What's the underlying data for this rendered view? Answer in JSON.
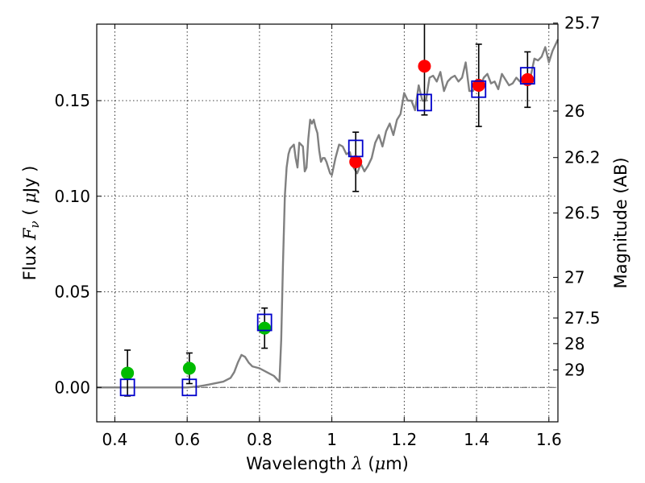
{
  "chart_data": {
    "type": "scatter",
    "xlabel": "Wavelength  λ (μm)",
    "xlabel_parts": [
      "Wavelength  ",
      "λ",
      " (",
      "μ",
      "m)"
    ],
    "ylabel": "Flux  Fν  ( μJy )",
    "ylabel_parts": [
      "Flux  ",
      "F",
      "ν",
      "  ( ",
      "μ",
      "Jy )"
    ],
    "y2label": "Magnitude (AB)",
    "xlim": [
      0.35,
      1.625
    ],
    "ylim": [
      -0.018,
      0.19
    ],
    "grid": true,
    "x_ticks": [
      {
        "value": 0.4,
        "label": "0.4"
      },
      {
        "value": 0.6,
        "label": "0.6"
      },
      {
        "value": 0.8,
        "label": "0.8"
      },
      {
        "value": 1.0,
        "label": "1"
      },
      {
        "value": 1.2,
        "label": "1.2"
      },
      {
        "value": 1.4,
        "label": "1.4"
      },
      {
        "value": 1.6,
        "label": "1.6"
      }
    ],
    "y_ticks": [
      {
        "value": 0.0,
        "label": "0.00"
      },
      {
        "value": 0.05,
        "label": "0.05"
      },
      {
        "value": 0.1,
        "label": "0.10"
      },
      {
        "value": 0.15,
        "label": "0.15"
      }
    ],
    "y2_ticks": [
      {
        "value": 25.7,
        "label": "25.7"
      },
      {
        "value": 26,
        "label": "26"
      },
      {
        "value": 26.2,
        "label": "26.2"
      },
      {
        "value": 26.5,
        "label": "26.5"
      },
      {
        "value": 27,
        "label": "27"
      },
      {
        "value": 27.5,
        "label": "27.5"
      },
      {
        "value": 28,
        "label": "28"
      },
      {
        "value": 29,
        "label": "29"
      }
    ],
    "zero_line": {
      "y": 0.0,
      "color": "#555555",
      "style": "dashdot"
    },
    "series": [
      {
        "kind": "line",
        "color": "#808080",
        "x": [
          0.35,
          0.55,
          0.6,
          0.63,
          0.66,
          0.7,
          0.72,
          0.73,
          0.74,
          0.75,
          0.76,
          0.77,
          0.78,
          0.8,
          0.82,
          0.84,
          0.85,
          0.855,
          0.86,
          0.865,
          0.87,
          0.875,
          0.88,
          0.885,
          0.89,
          0.895,
          0.9,
          0.905,
          0.91,
          0.92,
          0.925,
          0.93,
          0.935,
          0.94,
          0.945,
          0.95,
          0.955,
          0.96,
          0.965,
          0.97,
          0.975,
          0.98,
          0.985,
          0.99,
          0.995,
          1.0,
          1.01,
          1.02,
          1.03,
          1.04,
          1.05,
          1.06,
          1.07,
          1.08,
          1.09,
          1.1,
          1.11,
          1.12,
          1.13,
          1.14,
          1.15,
          1.16,
          1.17,
          1.18,
          1.19,
          1.2,
          1.21,
          1.22,
          1.23,
          1.24,
          1.25,
          1.26,
          1.27,
          1.28,
          1.29,
          1.3,
          1.31,
          1.32,
          1.33,
          1.34,
          1.35,
          1.36,
          1.37,
          1.38,
          1.39,
          1.4,
          1.41,
          1.42,
          1.43,
          1.44,
          1.45,
          1.46,
          1.47,
          1.48,
          1.49,
          1.5,
          1.51,
          1.52,
          1.53,
          1.54,
          1.55,
          1.56,
          1.57,
          1.58,
          1.59,
          1.6,
          1.61,
          1.625
        ],
        "y": [
          0.0,
          0.0,
          0.0,
          0.0005,
          0.0015,
          0.003,
          0.005,
          0.008,
          0.013,
          0.017,
          0.016,
          0.013,
          0.011,
          0.01,
          0.008,
          0.006,
          0.004,
          0.003,
          0.025,
          0.065,
          0.1,
          0.115,
          0.122,
          0.125,
          0.126,
          0.127,
          0.12,
          0.115,
          0.128,
          0.126,
          0.113,
          0.115,
          0.13,
          0.14,
          0.138,
          0.14,
          0.136,
          0.133,
          0.124,
          0.118,
          0.12,
          0.12,
          0.118,
          0.115,
          0.112,
          0.111,
          0.12,
          0.127,
          0.126,
          0.122,
          0.123,
          0.115,
          0.112,
          0.117,
          0.113,
          0.116,
          0.12,
          0.128,
          0.132,
          0.126,
          0.134,
          0.138,
          0.132,
          0.14,
          0.143,
          0.154,
          0.15,
          0.15,
          0.145,
          0.158,
          0.15,
          0.15,
          0.162,
          0.163,
          0.16,
          0.165,
          0.155,
          0.16,
          0.162,
          0.163,
          0.16,
          0.162,
          0.17,
          0.155,
          0.155,
          0.159,
          0.157,
          0.162,
          0.164,
          0.159,
          0.16,
          0.156,
          0.164,
          0.161,
          0.158,
          0.159,
          0.162,
          0.16,
          0.16,
          0.162,
          0.163,
          0.172,
          0.171,
          0.173,
          0.178,
          0.17,
          0.176,
          0.182
        ]
      },
      {
        "kind": "errorbar-points",
        "color": "#00bb00",
        "points": [
          {
            "x": 0.435,
            "y": 0.0075,
            "err": 0.012
          },
          {
            "x": 0.606,
            "y": 0.01,
            "err": 0.008
          },
          {
            "x": 0.814,
            "y": 0.031,
            "err": 0.0105
          }
        ]
      },
      {
        "kind": "errorbar-points",
        "color": "#ff0000",
        "points": [
          {
            "x": 1.066,
            "y": 0.118,
            "err": 0.0155
          },
          {
            "x": 1.256,
            "y": 0.168,
            "err": 0.0255
          },
          {
            "x": 1.406,
            "y": 0.158,
            "err": 0.0215
          },
          {
            "x": 1.541,
            "y": 0.161,
            "err": 0.0145
          }
        ]
      },
      {
        "kind": "square-markers",
        "color": "#0000cc",
        "points": [
          {
            "x": 0.435,
            "y": 0.0
          },
          {
            "x": 0.606,
            "y": 0.0
          },
          {
            "x": 0.814,
            "y": 0.034
          },
          {
            "x": 1.066,
            "y": 0.125
          },
          {
            "x": 1.256,
            "y": 0.149
          },
          {
            "x": 1.406,
            "y": 0.156
          },
          {
            "x": 1.541,
            "y": 0.163
          }
        ]
      }
    ]
  }
}
